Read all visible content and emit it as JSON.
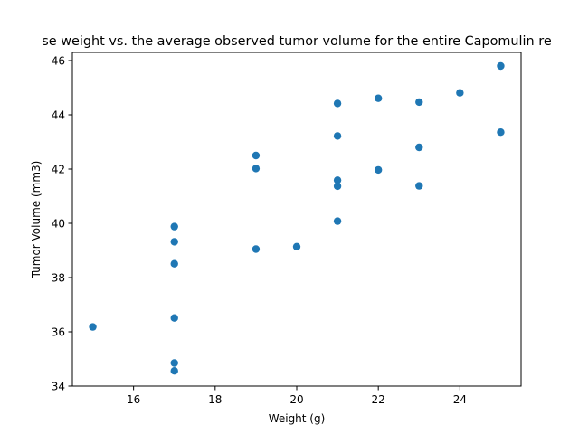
{
  "chart_data": {
    "type": "scatter",
    "title": "se weight vs. the average observed tumor volume for the entire Capomulin re",
    "xlabel": "Weight (g)",
    "ylabel": "Tumor Volume (mm3)",
    "xlim": [
      14.5,
      25.5
    ],
    "ylim": [
      34,
      46.3
    ],
    "xticks": [
      16,
      18,
      20,
      22,
      24
    ],
    "yticks": [
      34,
      36,
      38,
      40,
      42,
      44,
      46
    ],
    "grid": false,
    "marker_color": "#1f77b4",
    "points": [
      {
        "x": 15,
        "y": 36.18
      },
      {
        "x": 17,
        "y": 39.88
      },
      {
        "x": 17,
        "y": 39.32
      },
      {
        "x": 17,
        "y": 38.51
      },
      {
        "x": 17,
        "y": 36.51
      },
      {
        "x": 17,
        "y": 34.85
      },
      {
        "x": 17,
        "y": 34.56
      },
      {
        "x": 19,
        "y": 42.5
      },
      {
        "x": 19,
        "y": 42.02
      },
      {
        "x": 19,
        "y": 39.05
      },
      {
        "x": 20,
        "y": 39.14
      },
      {
        "x": 21,
        "y": 44.42
      },
      {
        "x": 21,
        "y": 43.22
      },
      {
        "x": 21,
        "y": 41.59
      },
      {
        "x": 21,
        "y": 41.37
      },
      {
        "x": 21,
        "y": 40.08
      },
      {
        "x": 22,
        "y": 44.61
      },
      {
        "x": 22,
        "y": 41.97
      },
      {
        "x": 23,
        "y": 44.47
      },
      {
        "x": 23,
        "y": 42.8
      },
      {
        "x": 23,
        "y": 41.38
      },
      {
        "x": 24,
        "y": 44.81
      },
      {
        "x": 25,
        "y": 45.8
      },
      {
        "x": 25,
        "y": 43.36
      }
    ]
  }
}
